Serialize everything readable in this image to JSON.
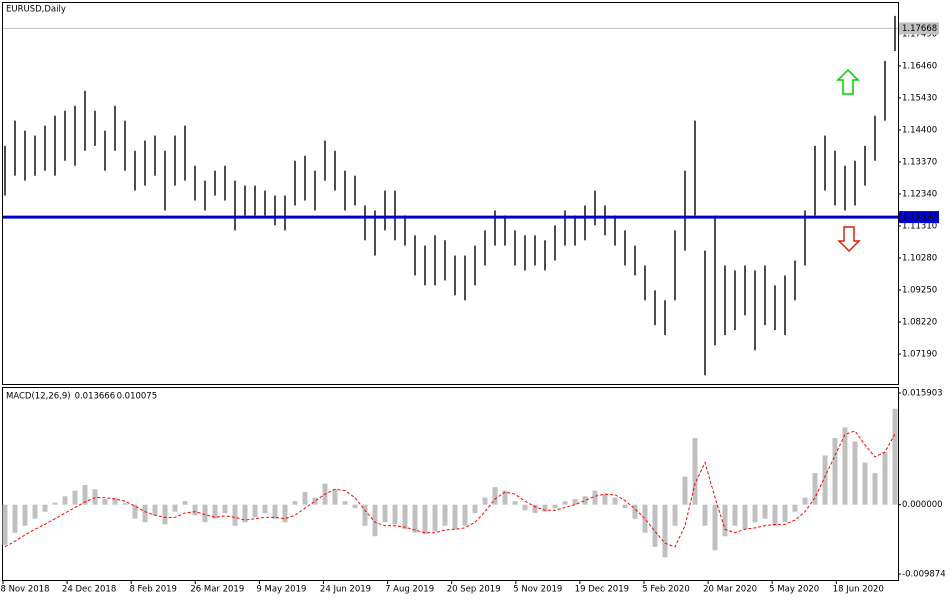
{
  "chart_data": [
    {
      "type": "range_bar",
      "title": "EURUSD,Daily",
      "color": "#000000",
      "high": [
        1.1389,
        1.147,
        1.1438,
        1.1422,
        1.1454,
        1.1486,
        1.1502,
        1.1518,
        1.1566,
        1.1502,
        1.1438,
        1.1518,
        1.147,
        1.1373,
        1.1406,
        1.1422,
        1.1373,
        1.1422,
        1.1454,
        1.1325,
        1.1277,
        1.1309,
        1.1325,
        1.1277,
        1.1261,
        1.1261,
        1.1245,
        1.1229,
        1.1229,
        1.1341,
        1.1357,
        1.1309,
        1.1406,
        1.1373,
        1.1309,
        1.1293,
        1.1197,
        1.1181,
        1.1245,
        1.1245,
        1.1165,
        1.1101,
        1.1068,
        1.1101,
        1.1085,
        1.1036,
        1.1036,
        1.1068,
        1.1117,
        1.1181,
        1.1165,
        1.1117,
        1.1101,
        1.1101,
        1.1085,
        1.1133,
        1.1181,
        1.1165,
        1.1197,
        1.1245,
        1.1197,
        1.1165,
        1.1117,
        1.1068,
        1.1004,
        1.0924,
        1.0892,
        1.1117,
        1.1309,
        1.147,
        1.1052,
        1.1165,
        1.1004,
        1.0988,
        1.1004,
        1.0988,
        1.1004,
        1.094,
        1.0972,
        1.102,
        1.1181,
        1.1389,
        1.1422,
        1.1373,
        1.1325,
        1.1341,
        1.1389,
        1.1486,
        1.1662,
        1.1807
      ],
      "low": [
        1.1229,
        1.1293,
        1.1277,
        1.1293,
        1.1309,
        1.1293,
        1.1341,
        1.1325,
        1.1373,
        1.1389,
        1.1309,
        1.1373,
        1.1309,
        1.1245,
        1.1261,
        1.1293,
        1.1181,
        1.1261,
        1.1277,
        1.1213,
        1.1181,
        1.1229,
        1.1213,
        1.1117,
        1.1165,
        1.1165,
        1.1165,
        1.1133,
        1.1117,
        1.1197,
        1.1213,
        1.1181,
        1.1277,
        1.1245,
        1.1181,
        1.1197,
        1.1085,
        1.1036,
        1.1117,
        1.1085,
        1.1068,
        1.0972,
        1.094,
        1.094,
        1.0956,
        1.0908,
        1.0892,
        1.094,
        1.1004,
        1.1068,
        1.1068,
        1.1004,
        1.0988,
        1.1004,
        1.0988,
        1.102,
        1.1068,
        1.1068,
        1.1085,
        1.1133,
        1.1101,
        1.1068,
        1.1004,
        1.0972,
        1.0892,
        1.0812,
        1.078,
        1.0892,
        1.1052,
        1.1165,
        1.0651,
        1.0747,
        1.078,
        1.0796,
        1.0844,
        1.0731,
        1.0812,
        1.0796,
        1.078,
        1.0892,
        1.1004,
        1.1165,
        1.1245,
        1.1197,
        1.1181,
        1.1197,
        1.1261,
        1.1341,
        1.147,
        1.1694
      ],
      "ylim": [
        1.06227,
        1.18485
      ],
      "yticks": [
        {
          "value": 1.1749,
          "label": "1.17490"
        },
        {
          "value": 1.1646,
          "label": "1.16460"
        },
        {
          "value": 1.1543,
          "label": "1.15430"
        },
        {
          "value": 1.144,
          "label": "1.14400"
        },
        {
          "value": 1.1337,
          "label": "1.13370"
        },
        {
          "value": 1.1234,
          "label": "1.12340"
        },
        {
          "value": 1.1131,
          "label": "1.11310"
        },
        {
          "value": 1.1028,
          "label": "1.10280"
        },
        {
          "value": 1.0925,
          "label": "1.09250"
        },
        {
          "value": 1.0822,
          "label": "1.08220"
        },
        {
          "value": 1.0719,
          "label": "1.07190"
        }
      ],
      "current_price": 1.17668,
      "current_price_color": "#c0c0c0",
      "level": 1.11597,
      "level_color": "#0000cc"
    },
    {
      "type": "macd",
      "title": "MACD(12,26,9)",
      "histogram": {
        "color": "#c0c0c0",
        "values": [
          -0.0057,
          -0.004,
          -0.003,
          -0.002,
          -0.001,
          0.0003,
          0.0012,
          0.002,
          0.0028,
          0.0022,
          0.0008,
          0.001,
          0.0002,
          -0.002,
          -0.0025,
          -0.0015,
          -0.0028,
          -0.001,
          0.0005,
          -0.0015,
          -0.0025,
          -0.002,
          -0.0012,
          -0.003,
          -0.0025,
          -0.0018,
          -0.0012,
          -0.002,
          -0.0025,
          0.0005,
          0.0018,
          0.001,
          0.003,
          0.0022,
          0.0005,
          -0.0005,
          -0.003,
          -0.0045,
          -0.0025,
          -0.0028,
          -0.0035,
          -0.004,
          -0.0042,
          -0.0038,
          -0.003,
          -0.0035,
          -0.003,
          -0.0012,
          0.001,
          0.0025,
          0.002,
          0.0005,
          -0.0008,
          -0.0012,
          -0.001,
          -0.0005,
          0.0005,
          0.0008,
          0.0012,
          0.002,
          0.0015,
          0.001,
          -0.0005,
          -0.002,
          -0.004,
          -0.006,
          -0.0075,
          -0.003,
          0.004,
          0.0095,
          -0.003,
          -0.0065,
          -0.0045,
          -0.003,
          -0.0035,
          -0.0025,
          -0.002,
          -0.003,
          -0.0025,
          -0.001,
          0.001,
          0.0045,
          0.007,
          0.0095,
          0.011,
          0.009,
          0.006,
          0.0045,
          0.0075,
          0.013666
        ]
      },
      "signal": {
        "color": "#ff0000",
        "values": [
          -0.006,
          -0.0052,
          -0.0043,
          -0.0035,
          -0.0028,
          -0.002,
          -0.0012,
          -0.0004,
          0.0004,
          0.001,
          0.001,
          0.0008,
          0.0005,
          -0.0002,
          -0.001,
          -0.0015,
          -0.0018,
          -0.0018,
          -0.0012,
          -0.001,
          -0.0014,
          -0.0018,
          -0.0016,
          -0.0018,
          -0.0022,
          -0.002,
          -0.0018,
          -0.0018,
          -0.002,
          -0.0015,
          -0.0005,
          0.0005,
          0.0015,
          0.0022,
          0.002,
          0.001,
          -0.0008,
          -0.0025,
          -0.003,
          -0.003,
          -0.0032,
          -0.0036,
          -0.004,
          -0.004,
          -0.0036,
          -0.0035,
          -0.0033,
          -0.0025,
          -0.001,
          0.0008,
          0.0018,
          0.0015,
          0.0005,
          -0.0003,
          -0.0008,
          -0.0008,
          -0.0004,
          0,
          0.0006,
          0.0012,
          0.0015,
          0.0014,
          0.0006,
          -0.0006,
          -0.002,
          -0.0038,
          -0.0055,
          -0.006,
          -0.003,
          0.003,
          0.006,
          0.001,
          -0.0035,
          -0.004,
          -0.0035,
          -0.0033,
          -0.003,
          -0.0028,
          -0.0028,
          -0.0022,
          -0.001,
          0.001,
          0.004,
          0.007,
          0.01,
          0.0105,
          0.0085,
          0.0068,
          0.0075,
          0.010075
        ]
      },
      "ylim": [
        -0.010726,
        0.016613
      ],
      "yticks": [
        {
          "value": 0.015903,
          "label": "0.015903"
        },
        {
          "value": 0,
          "label": "0.000000"
        },
        {
          "value": -0.009874,
          "label": "-0.009874"
        }
      ]
    }
  ],
  "x_labels": [
    "8 Nov 2018",
    "24 Dec 2018",
    "8 Feb 2019",
    "26 Mar 2019",
    "9 May 2019",
    "24 Jun 2019",
    "7 Aug 2019",
    "20 Sep 2019",
    "5 Nov 2019",
    "19 Dec 2019",
    "5 Feb 2020",
    "20 Mar 2020",
    "5 May 2020",
    "18 Jun 2020"
  ]
}
